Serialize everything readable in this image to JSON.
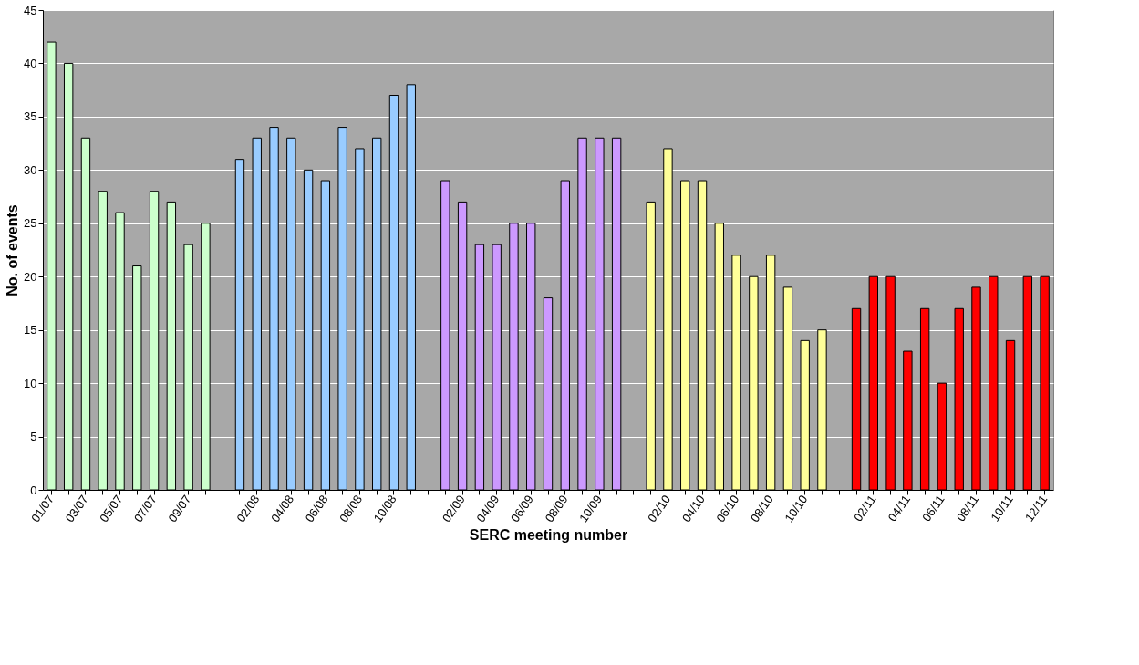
{
  "chart_data": {
    "type": "bar",
    "xlabel": "SERC meeting number",
    "ylabel": "No. of events",
    "categories": [
      "01/07",
      null,
      "03/07",
      null,
      "05/07",
      null,
      "07/07",
      null,
      "09/07",
      null,
      null,
      null,
      "02/08",
      null,
      "04/08",
      null,
      "06/08",
      null,
      "08/08",
      null,
      "10/08",
      null,
      null,
      null,
      "02/09",
      null,
      "04/09",
      null,
      "06/09",
      null,
      "08/09",
      null,
      "10/09",
      null,
      null,
      null,
      "02/10",
      null,
      "04/10",
      null,
      "06/10",
      null,
      "08/10",
      null,
      "10/10",
      null,
      null,
      null,
      "02/11",
      null,
      "04/11",
      null,
      "06/11",
      null,
      "08/11",
      null,
      "10/11",
      null,
      "12/11"
    ],
    "values": [
      42,
      40,
      33,
      28,
      26,
      21,
      28,
      27,
      23,
      25,
      null,
      31,
      33,
      34,
      33,
      30,
      29,
      34,
      32,
      33,
      37,
      38,
      null,
      29,
      27,
      23,
      23,
      25,
      25,
      18,
      29,
      33,
      33,
      33,
      null,
      27,
      32,
      29,
      29,
      25,
      22,
      20,
      22,
      19,
      14,
      15,
      null,
      17,
      20,
      20,
      13,
      17,
      10,
      17,
      19,
      20,
      14,
      20,
      20
    ],
    "colors": [
      "#ccffcc",
      "#ccffcc",
      "#ccffcc",
      "#ccffcc",
      "#ccffcc",
      "#ccffcc",
      "#ccffcc",
      "#ccffcc",
      "#ccffcc",
      "#ccffcc",
      null,
      "#99ccff",
      "#99ccff",
      "#99ccff",
      "#99ccff",
      "#99ccff",
      "#99ccff",
      "#99ccff",
      "#99ccff",
      "#99ccff",
      "#99ccff",
      "#99ccff",
      null,
      "#cc99ff",
      "#cc99ff",
      "#cc99ff",
      "#cc99ff",
      "#cc99ff",
      "#cc99ff",
      "#cc99ff",
      "#cc99ff",
      "#cc99ff",
      "#cc99ff",
      "#cc99ff",
      null,
      "#ffff99",
      "#ffff99",
      "#ffff99",
      "#ffff99",
      "#ffff99",
      "#ffff99",
      "#ffff99",
      "#ffff99",
      "#ffff99",
      "#ffff99",
      "#ffff99",
      null,
      "#ff0000",
      "#ff0000",
      "#ff0000",
      "#ff0000",
      "#ff0000",
      "#ff0000",
      "#ff0000",
      "#ff0000",
      "#ff0000",
      "#ff0000",
      "#ff0000",
      "#ff0000"
    ],
    "ylim": [
      0,
      45
    ],
    "yticks": [
      0,
      5,
      10,
      15,
      20,
      25,
      30,
      35,
      40,
      45
    ],
    "grid": "y"
  }
}
